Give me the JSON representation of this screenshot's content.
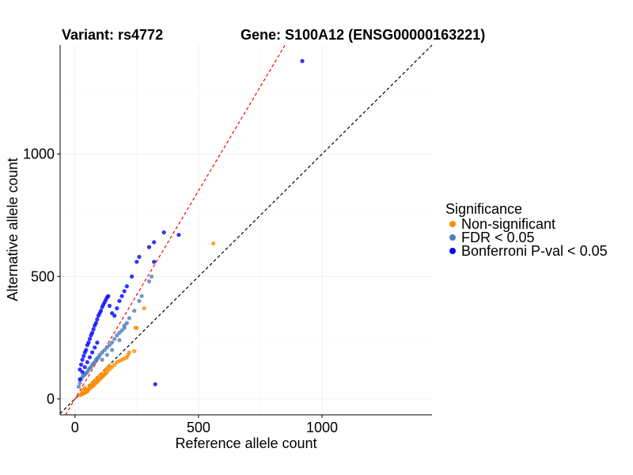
{
  "chart_data": {
    "type": "scatter",
    "title_left": "Variant: rs4772",
    "title_right": "Gene: S100A12 (ENSG00000163221)",
    "xlabel": "Reference allele count",
    "ylabel": "Alternative allele count",
    "xlim": [
      -60,
      1445
    ],
    "ylim": [
      -65,
      1445
    ],
    "x_ticks": [
      0,
      500,
      1000
    ],
    "y_ticks": [
      0,
      500,
      1000
    ],
    "grid": true,
    "legend_position": "right",
    "legend_title": "Significance",
    "reference_lines": [
      {
        "name": "identity",
        "slope": 1.0,
        "intercept": 0,
        "color": "#000000",
        "dash": true
      },
      {
        "name": "fit",
        "slope": 1.7,
        "intercept": 0,
        "color": "#ff0000",
        "dash": true
      }
    ],
    "series": [
      {
        "name": "Non-significant",
        "color": "#ff8c00",
        "points": [
          [
            20,
            15
          ],
          [
            25,
            18
          ],
          [
            30,
            20
          ],
          [
            35,
            22
          ],
          [
            40,
            25
          ],
          [
            45,
            28
          ],
          [
            50,
            35
          ],
          [
            55,
            40
          ],
          [
            60,
            42
          ],
          [
            65,
            48
          ],
          [
            70,
            50
          ],
          [
            75,
            55
          ],
          [
            80,
            60
          ],
          [
            85,
            65
          ],
          [
            90,
            70
          ],
          [
            95,
            75
          ],
          [
            100,
            80
          ],
          [
            105,
            85
          ],
          [
            110,
            90
          ],
          [
            115,
            95
          ],
          [
            120,
            100
          ],
          [
            125,
            105
          ],
          [
            130,
            110
          ],
          [
            140,
            120
          ],
          [
            150,
            130
          ],
          [
            160,
            140
          ],
          [
            170,
            150
          ],
          [
            180,
            155
          ],
          [
            190,
            160
          ],
          [
            200,
            165
          ],
          [
            210,
            170
          ],
          [
            215,
            180
          ],
          [
            220,
            190
          ],
          [
            240,
            195
          ],
          [
            245,
            290
          ],
          [
            250,
            290
          ],
          [
            280,
            370
          ],
          [
            560,
            635
          ],
          [
            30,
            35
          ],
          [
            40,
            45
          ],
          [
            50,
            30
          ],
          [
            60,
            55
          ],
          [
            70,
            65
          ],
          [
            80,
            75
          ],
          [
            90,
            85
          ],
          [
            100,
            95
          ],
          [
            110,
            100
          ],
          [
            120,
            115
          ],
          [
            130,
            125
          ],
          [
            140,
            135
          ]
        ]
      },
      {
        "name": "FDR < 0.05",
        "color": "#4f7dbd",
        "points": [
          [
            15,
            50
          ],
          [
            20,
            65
          ],
          [
            25,
            80
          ],
          [
            30,
            90
          ],
          [
            35,
            95
          ],
          [
            40,
            100
          ],
          [
            45,
            105
          ],
          [
            50,
            110
          ],
          [
            55,
            120
          ],
          [
            60,
            125
          ],
          [
            65,
            130
          ],
          [
            70,
            140
          ],
          [
            75,
            145
          ],
          [
            80,
            150
          ],
          [
            85,
            160
          ],
          [
            90,
            165
          ],
          [
            95,
            170
          ],
          [
            100,
            180
          ],
          [
            110,
            190
          ],
          [
            120,
            200
          ],
          [
            130,
            210
          ],
          [
            140,
            220
          ],
          [
            150,
            230
          ],
          [
            160,
            245
          ],
          [
            170,
            260
          ],
          [
            180,
            270
          ],
          [
            190,
            280
          ],
          [
            200,
            300
          ],
          [
            210,
            310
          ],
          [
            220,
            330
          ],
          [
            240,
            360
          ],
          [
            260,
            400
          ],
          [
            270,
            420
          ],
          [
            300,
            480
          ],
          [
            310,
            500
          ],
          [
            200,
            290
          ],
          [
            180,
            240
          ],
          [
            150,
            200
          ],
          [
            130,
            180
          ],
          [
            110,
            160
          ]
        ]
      },
      {
        "name": "Bonferroni P-val < 0.05",
        "color": "#0000ff",
        "points": [
          [
            20,
            120
          ],
          [
            25,
            140
          ],
          [
            30,
            160
          ],
          [
            35,
            175
          ],
          [
            40,
            190
          ],
          [
            45,
            200
          ],
          [
            50,
            220
          ],
          [
            55,
            230
          ],
          [
            60,
            245
          ],
          [
            65,
            260
          ],
          [
            70,
            270
          ],
          [
            75,
            285
          ],
          [
            80,
            300
          ],
          [
            85,
            310
          ],
          [
            90,
            325
          ],
          [
            95,
            340
          ],
          [
            100,
            350
          ],
          [
            105,
            360
          ],
          [
            110,
            375
          ],
          [
            115,
            385
          ],
          [
            120,
            395
          ],
          [
            125,
            405
          ],
          [
            130,
            415
          ],
          [
            135,
            420
          ],
          [
            140,
            380
          ],
          [
            150,
            350
          ],
          [
            160,
            340
          ],
          [
            170,
            370
          ],
          [
            180,
            400
          ],
          [
            190,
            420
          ],
          [
            200,
            440
          ],
          [
            210,
            460
          ],
          [
            230,
            500
          ],
          [
            250,
            560
          ],
          [
            260,
            580
          ],
          [
            300,
            620
          ],
          [
            320,
            640
          ],
          [
            360,
            680
          ],
          [
            420,
            670
          ],
          [
            320,
            560
          ],
          [
            325,
            60
          ],
          [
            920,
            1380
          ],
          [
            20,
            80
          ],
          [
            30,
            110
          ],
          [
            40,
            130
          ],
          [
            50,
            150
          ],
          [
            60,
            170
          ],
          [
            70,
            190
          ],
          [
            80,
            210
          ],
          [
            90,
            230
          ]
        ]
      }
    ]
  }
}
